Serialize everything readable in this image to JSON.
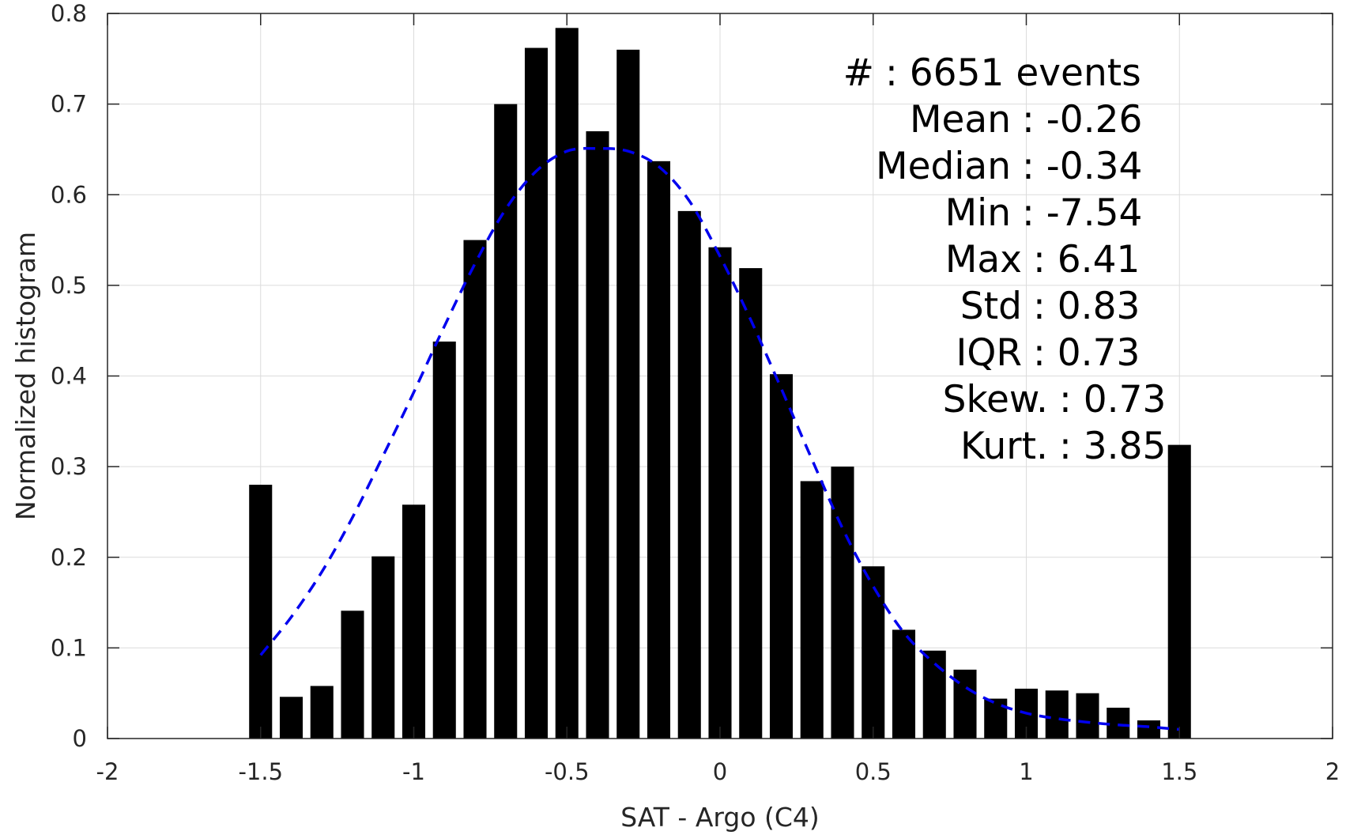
{
  "chart_data": {
    "type": "bar",
    "xlabel": "SAT - Argo (C4)",
    "ylabel": "Normalized histogram",
    "xlim": [
      -2,
      2
    ],
    "ylim": [
      0,
      0.8
    ],
    "grid": true,
    "x_ticks": [
      "-2",
      "-1.5",
      "-1",
      "-0.5",
      "0",
      "0.5",
      "1",
      "1.5",
      "2"
    ],
    "y_ticks": [
      "0",
      "0.1",
      "0.2",
      "0.3",
      "0.4",
      "0.5",
      "0.6",
      "0.7",
      "0.8"
    ],
    "bar_color": "#000000",
    "bars": {
      "x": [
        -1.5,
        -1.4,
        -1.3,
        -1.2,
        -1.1,
        -1.0,
        -0.9,
        -0.8,
        -0.7,
        -0.6,
        -0.5,
        -0.4,
        -0.3,
        -0.2,
        -0.1,
        0.0,
        0.1,
        0.2,
        0.3,
        0.4,
        0.5,
        0.6,
        0.7,
        0.8,
        0.9,
        1.0,
        1.1,
        1.2,
        1.3,
        1.4,
        1.5
      ],
      "values": [
        0.28,
        0.046,
        0.058,
        0.141,
        0.201,
        0.258,
        0.438,
        0.55,
        0.7,
        0.762,
        0.784,
        0.67,
        0.76,
        0.637,
        0.582,
        0.542,
        0.519,
        0.402,
        0.284,
        0.3,
        0.19,
        0.12,
        0.097,
        0.076,
        0.044,
        0.055,
        0.053,
        0.05,
        0.034,
        0.02,
        0.324
      ]
    },
    "fit_curve": {
      "style": "dashed",
      "color": "#0000ee",
      "x": [
        -1.5,
        -1.4,
        -1.3,
        -1.2,
        -1.1,
        -1.0,
        -0.9,
        -0.8,
        -0.7,
        -0.6,
        -0.5,
        -0.4,
        -0.3,
        -0.2,
        -0.1,
        0.0,
        0.1,
        0.2,
        0.3,
        0.4,
        0.5,
        0.6,
        0.7,
        0.8,
        0.9,
        1.0,
        1.1,
        1.2,
        1.3,
        1.4,
        1.5
      ],
      "values": [
        0.092,
        0.134,
        0.184,
        0.244,
        0.312,
        0.382,
        0.455,
        0.524,
        0.584,
        0.626,
        0.648,
        0.651,
        0.648,
        0.631,
        0.593,
        0.532,
        0.462,
        0.386,
        0.308,
        0.232,
        0.168,
        0.117,
        0.083,
        0.057,
        0.039,
        0.028,
        0.022,
        0.018,
        0.015,
        0.013,
        0.01
      ]
    },
    "annotations": [
      "#  : 6651 events",
      "Mean : -0.26",
      "Median : -0.34",
      "Min : -7.54",
      "Max : 6.41",
      "Std : 0.83",
      "IQR : 0.73",
      "Skew. : 0.73",
      "Kurt. : 3.85"
    ]
  }
}
